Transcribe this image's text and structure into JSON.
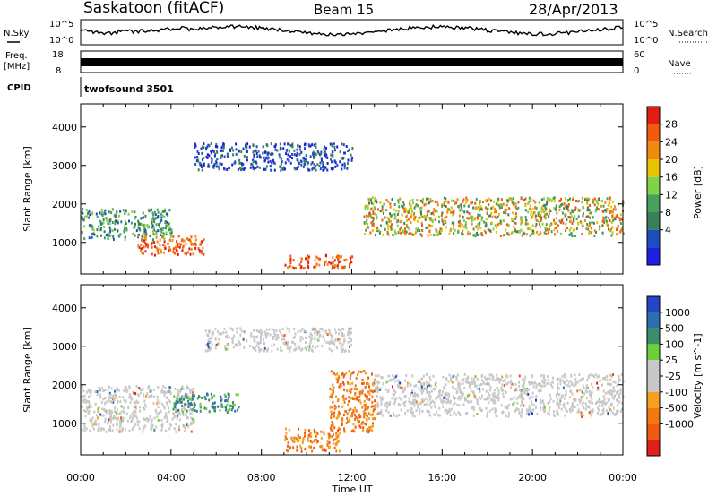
{
  "header": {
    "station": "Saskatoon (fitACF)",
    "beam": "Beam 15",
    "date": "28/Apr/2013"
  },
  "top_panels": {
    "nsky_label": "N.Sky",
    "nsky_ticks": [
      "10^5",
      "10^0"
    ],
    "nsearch_label": "N.Search",
    "nsearch_ticks": [
      "10^5",
      "10^0"
    ],
    "freq_label_1": "Freq.",
    "freq_label_2": "[MHz]",
    "freq_ticks": [
      "18",
      "8"
    ],
    "nave_label": "Nave",
    "nave_ticks": [
      "60",
      "0"
    ],
    "cpid_label": "CPID",
    "cpid_value": "twofsound 3501"
  },
  "colorbars": {
    "power": {
      "label": "Power [dB]",
      "ticks": [
        "28",
        "24",
        "20",
        "16",
        "12",
        "8",
        "4"
      ],
      "colors": [
        "#1f1fe0",
        "#1b4fc0",
        "#3a7f5a",
        "#47a05b",
        "#82d14a",
        "#e8c300",
        "#f08a10",
        "#f25a10",
        "#e21e14"
      ]
    },
    "velocity": {
      "label": "Velocity [m s^-1]",
      "ticks": [
        "1000",
        "500",
        "100",
        "25",
        "-25",
        "-100",
        "-500",
        "-1000"
      ],
      "colors": [
        "#2346c8",
        "#2b6fae",
        "#3a8f6a",
        "#6ccf3a",
        "#c8c8c8",
        "#c8c8c8",
        "#f5a020",
        "#f07a10",
        "#ee5a10",
        "#e0201a"
      ]
    }
  },
  "chart_data": [
    {
      "type": "heatmap",
      "title": "Power",
      "ylabel": "Slant Range [km]",
      "xlabel": "Time UT",
      "ylim": [
        180,
        4600
      ],
      "xlim": [
        0,
        24
      ],
      "y_ticks": [
        1000,
        2000,
        3000,
        4000
      ],
      "x_ticks": [
        "00:00",
        "04:00",
        "08:00",
        "12:00",
        "16:00",
        "20:00",
        "00:00"
      ],
      "echo_regions": [
        {
          "t": [
            0.0,
            4.0
          ],
          "range_km": [
            1100,
            1900
          ],
          "level": "power 8-16 dB"
        },
        {
          "t": [
            2.5,
            5.5
          ],
          "range_km": [
            700,
            1200
          ],
          "level": "power 20-28 dB"
        },
        {
          "t": [
            5.0,
            12.0
          ],
          "range_km": [
            2900,
            3600
          ],
          "level": "power 4-12 dB"
        },
        {
          "t": [
            9.0,
            12.0
          ],
          "range_km": [
            350,
            700
          ],
          "level": "power 20-28 dB"
        },
        {
          "t": [
            12.5,
            24.0
          ],
          "range_km": [
            1200,
            2200
          ],
          "level": "power 12-24 dB"
        }
      ]
    },
    {
      "type": "heatmap",
      "title": "Velocity",
      "ylabel": "Slant Range [km]",
      "xlabel": "Time UT",
      "ylim": [
        180,
        4600
      ],
      "xlim": [
        0,
        24
      ],
      "y_ticks": [
        1000,
        2000,
        3000,
        4000
      ],
      "x_ticks": [
        "00:00",
        "04:00",
        "08:00",
        "12:00",
        "16:00",
        "20:00",
        "00:00"
      ],
      "echo_regions": [
        {
          "t": [
            0.0,
            5.0
          ],
          "range_km": [
            800,
            2000
          ],
          "level": "velocity -25 to 25 m/s"
        },
        {
          "t": [
            4.0,
            7.0
          ],
          "range_km": [
            1300,
            1800
          ],
          "level": "velocity 100-500 m/s"
        },
        {
          "t": [
            9.0,
            11.5
          ],
          "range_km": [
            300,
            900
          ],
          "level": "velocity -500 to -100 m/s"
        },
        {
          "t": [
            11.0,
            13.0
          ],
          "range_km": [
            800,
            2400
          ],
          "level": "velocity -500 to -100 m/s"
        },
        {
          "t": [
            5.5,
            12.0
          ],
          "range_km": [
            2900,
            3500
          ],
          "level": "velocity -25 to 25 m/s"
        },
        {
          "t": [
            13.0,
            24.0
          ],
          "range_km": [
            1200,
            2300
          ],
          "level": "velocity -25 to 25 m/s"
        }
      ]
    }
  ]
}
